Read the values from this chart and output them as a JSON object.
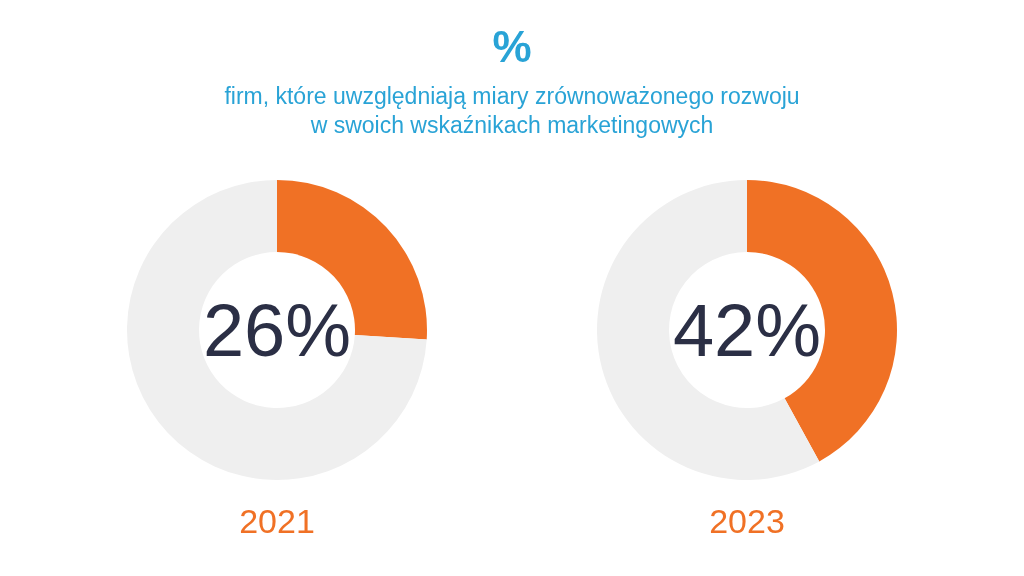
{
  "chart_data": [
    {
      "type": "donut",
      "title": "%",
      "subtitle": "firm, które uwzględniają miary zrównoważonego rozwoju\nw swoich wskaźnikach marketingowych",
      "categories": [
        null,
        null
      ],
      "values": [
        26,
        74
      ],
      "colors": [
        "#f07125",
        "#efefef"
      ],
      "annotations": [
        "26%"
      ],
      "xlabel": "2021"
    },
    {
      "type": "donut",
      "categories": [
        null,
        null
      ],
      "values": [
        42,
        58
      ],
      "colors": [
        "#f07125",
        "#efefef"
      ],
      "annotations": [
        "42%"
      ],
      "xlabel": "2023"
    }
  ]
}
